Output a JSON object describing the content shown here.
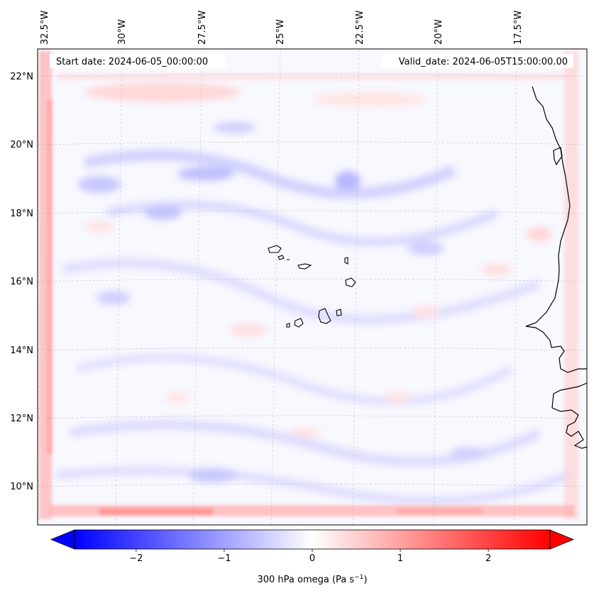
{
  "map": {
    "start_label": "Start date: 2024-06-05_00:00:00",
    "valid_label": "Valid_date: 2024-06-05T15:00:00.00",
    "lon_ticks": [
      "32.5°W",
      "30°W",
      "27.5°W",
      "25°W",
      "22.5°W",
      "20°W",
      "17.5°W"
    ],
    "lat_ticks": [
      "22°N",
      "20°N",
      "18°N",
      "16°N",
      "14°N",
      "12°N",
      "10°N"
    ],
    "field": "300 hPa omega"
  },
  "colorbar": {
    "ticks": [
      "−2",
      "−1",
      "0",
      "1",
      "2"
    ],
    "label_main": "300 hPa omega (Pa s",
    "label_sup": "−1",
    "label_close": ")",
    "vmin": -2.7,
    "vmax": 2.7,
    "colors": {
      "low": "#0000ff",
      "mid": "#ffffff",
      "high": "#ff0000"
    }
  }
}
